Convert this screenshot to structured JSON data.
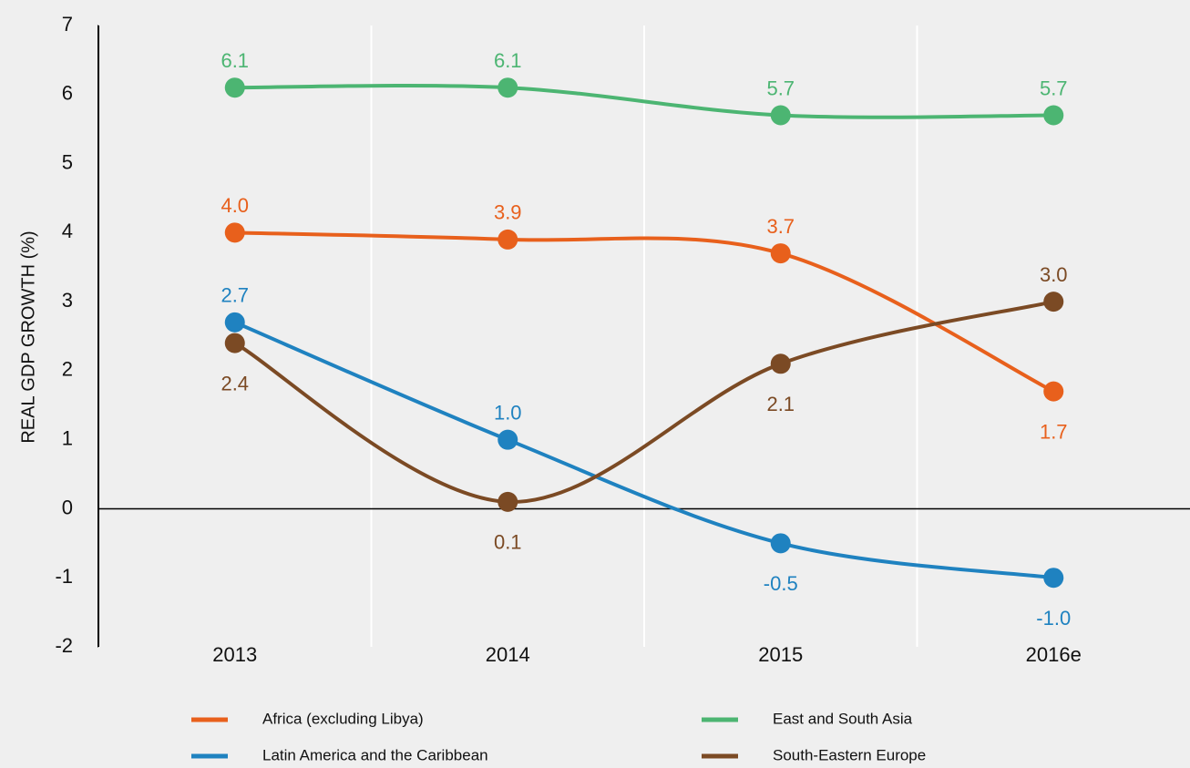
{
  "chart_data": {
    "type": "line",
    "y_label": "REAL  GDP  GROWTH (%)",
    "categories": [
      "2013",
      "2014",
      "2015",
      "2016e"
    ],
    "ylim": [
      -2,
      7
    ],
    "yticks": [
      7,
      6,
      5,
      4,
      3,
      2,
      1,
      0,
      -1,
      -2
    ],
    "series": [
      {
        "name": "Africa (excluding Libya)",
        "color": "#e8601c",
        "values": [
          4.0,
          3.9,
          3.7,
          1.7
        ],
        "value_labels": [
          "4.0",
          "3.9",
          "3.7",
          "1.7"
        ]
      },
      {
        "name": "East and South Asia",
        "color": "#4cb572",
        "values": [
          6.1,
          6.1,
          5.7,
          5.7
        ],
        "value_labels": [
          "6.1",
          "6.1",
          "5.7",
          "5.7"
        ]
      },
      {
        "name": "Latin America and the Caribbean",
        "color": "#1f82c0",
        "values": [
          2.7,
          1.0,
          -0.5,
          -1.0
        ],
        "value_labels": [
          "2.7",
          "1.0",
          "-0.5",
          "-1.0"
        ]
      },
      {
        "name": "South-Eastern Europe",
        "color": "#7b4a24",
        "values": [
          2.4,
          0.1,
          2.1,
          3.0
        ],
        "value_labels": [
          "2.4",
          "0.1",
          "2.1",
          "3.0"
        ]
      }
    ]
  }
}
